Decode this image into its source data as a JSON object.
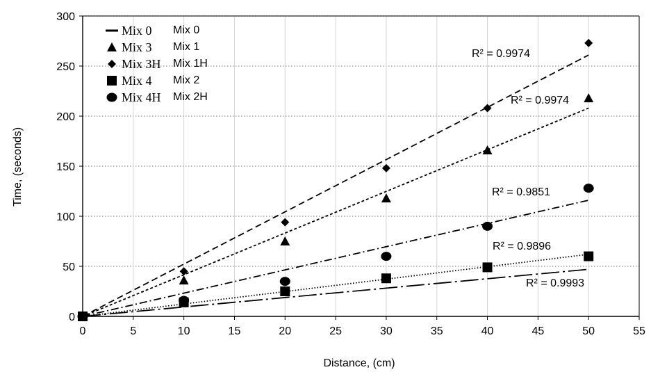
{
  "chart_data": {
    "type": "scatter",
    "xlabel": "Distance, (cm)",
    "ylabel": "Time, (seconds)",
    "xlim": [
      0,
      55
    ],
    "ylim": [
      0,
      300
    ],
    "xticks": [
      0,
      5,
      10,
      15,
      20,
      25,
      30,
      35,
      40,
      45,
      50,
      55
    ],
    "yticks": [
      0,
      50,
      100,
      150,
      200,
      250,
      300
    ],
    "grid": "dotted horizontal and solid vertical",
    "legend_position": "top-left",
    "series": [
      {
        "name": "Mix 0",
        "alt_label": "Mix 0",
        "marker": "line",
        "trend_style": "dash-dot-long",
        "r2_label": "R² = 0.9993",
        "x": [
          0,
          10,
          20,
          30,
          40,
          50
        ],
        "y": [
          0,
          13,
          22,
          30,
          39,
          46
        ],
        "trend": [
          0,
          47
        ]
      },
      {
        "name": "Mix 3",
        "alt_label": "Mix 1",
        "marker": "triangle",
        "trend_style": "short-dash",
        "r2_label": "R² = 0.9974",
        "x": [
          0,
          10,
          20,
          30,
          40,
          50
        ],
        "y": [
          0,
          36,
          75,
          118,
          166,
          218
        ],
        "trend": [
          0,
          208
        ]
      },
      {
        "name": "Mix 3H",
        "alt_label": "Mix 1H",
        "marker": "diamond",
        "trend_style": "dash",
        "r2_label": "R² = 0.9974",
        "x": [
          0,
          10,
          20,
          30,
          40,
          50
        ],
        "y": [
          0,
          45,
          94,
          148,
          208,
          273
        ],
        "trend": [
          0,
          261
        ]
      },
      {
        "name": "Mix 4",
        "alt_label": "Mix 2",
        "marker": "square",
        "trend_style": "dot",
        "r2_label": "R² = 0.9896",
        "x": [
          0,
          10,
          20,
          30,
          40,
          50
        ],
        "y": [
          0,
          14,
          25,
          38,
          49,
          60
        ],
        "trend": [
          0,
          62
        ]
      },
      {
        "name": "Mix 4H",
        "alt_label": "Mix 2H",
        "marker": "circle",
        "trend_style": "dash-dot",
        "r2_label": "R² = 0.9851",
        "x": [
          0,
          10,
          20,
          30,
          40,
          50
        ],
        "y": [
          0,
          16,
          35,
          60,
          90,
          128
        ],
        "trend": [
          0,
          116
        ]
      }
    ]
  }
}
